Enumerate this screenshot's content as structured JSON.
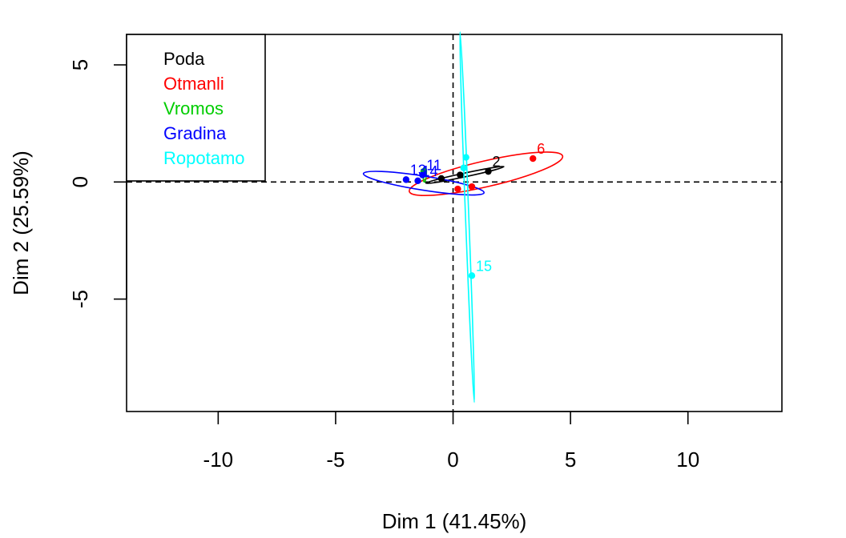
{
  "chart_data": {
    "type": "scatter",
    "title": "",
    "xlabel": "Dim 1 (41.45%)",
    "ylabel": "Dim 2 (25.59%)",
    "xlim": [
      -13.9,
      14.0
    ],
    "ylim": [
      -9.8,
      6.3
    ],
    "x_ticks": [
      -10,
      -5,
      0,
      5,
      10
    ],
    "x_tick_labels": [
      "-10",
      "-5",
      "0",
      "5",
      "10"
    ],
    "y_ticks": [
      -5,
      0,
      5
    ],
    "y_tick_labels": [
      "-5",
      "0",
      "5"
    ],
    "reference_lines": {
      "x": 0,
      "y": 0,
      "style": "dashed"
    },
    "legend": {
      "position": "top-left",
      "entries": [
        {
          "label": "Poda",
          "color": "#000000"
        },
        {
          "label": "Otmanli",
          "color": "#ff0000"
        },
        {
          "label": "Vromos",
          "color": "#00cd00"
        },
        {
          "label": "Gradina",
          "color": "#0000ff"
        },
        {
          "label": "Ropotamo",
          "color": "#00ffff"
        }
      ]
    },
    "groups": [
      {
        "name": "Poda",
        "color": "#000000",
        "ellipse": {
          "cx": 0.5,
          "cy": 0.3,
          "rx": 1.7,
          "ry": 0.08,
          "angle": 12
        },
        "points": [
          {
            "x": 1.5,
            "y": 0.45,
            "label": "2"
          },
          {
            "x": 0.3,
            "y": 0.3,
            "label": ""
          },
          {
            "x": -0.5,
            "y": 0.15,
            "label": ""
          }
        ]
      },
      {
        "name": "Otmanli",
        "color": "#ff0000",
        "ellipse": {
          "cx": 1.4,
          "cy": 0.35,
          "rx": 3.35,
          "ry": 0.55,
          "angle": 13
        },
        "points": [
          {
            "x": 3.4,
            "y": 1.0,
            "label": "6"
          },
          {
            "x": 0.8,
            "y": -0.2,
            "label": ""
          },
          {
            "x": 0.2,
            "y": -0.3,
            "label": ""
          }
        ]
      },
      {
        "name": "Vromos",
        "color": "#00cd00",
        "ellipse": {
          "cx": -1.2,
          "cy": 0.3,
          "rx": 0.3,
          "ry": 0.06,
          "angle": 85
        },
        "points": [
          {
            "x": -1.25,
            "y": 0.45,
            "label": ""
          }
        ]
      },
      {
        "name": "Gradina",
        "color": "#0000ff",
        "ellipse": {
          "cx": -1.25,
          "cy": -0.05,
          "rx": 2.6,
          "ry": 0.3,
          "angle": -9
        },
        "points": [
          {
            "x": -2.0,
            "y": 0.1,
            "label": "13"
          },
          {
            "x": -1.5,
            "y": 0.05,
            "label": "14"
          },
          {
            "x": -1.3,
            "y": 0.3,
            "label": "11"
          }
        ]
      },
      {
        "name": "Ropotamo",
        "color": "#00ffff",
        "ellipse": {
          "cx": 0.6,
          "cy": -1.5,
          "rx": 7.9,
          "ry": 0.07,
          "angle": -87.8
        },
        "points": [
          {
            "x": 0.8,
            "y": -4.0,
            "label": "15"
          },
          {
            "x": 0.55,
            "y": 1.05,
            "label": ""
          },
          {
            "x": 0.45,
            "y": 0.6,
            "label": ""
          }
        ]
      }
    ]
  }
}
